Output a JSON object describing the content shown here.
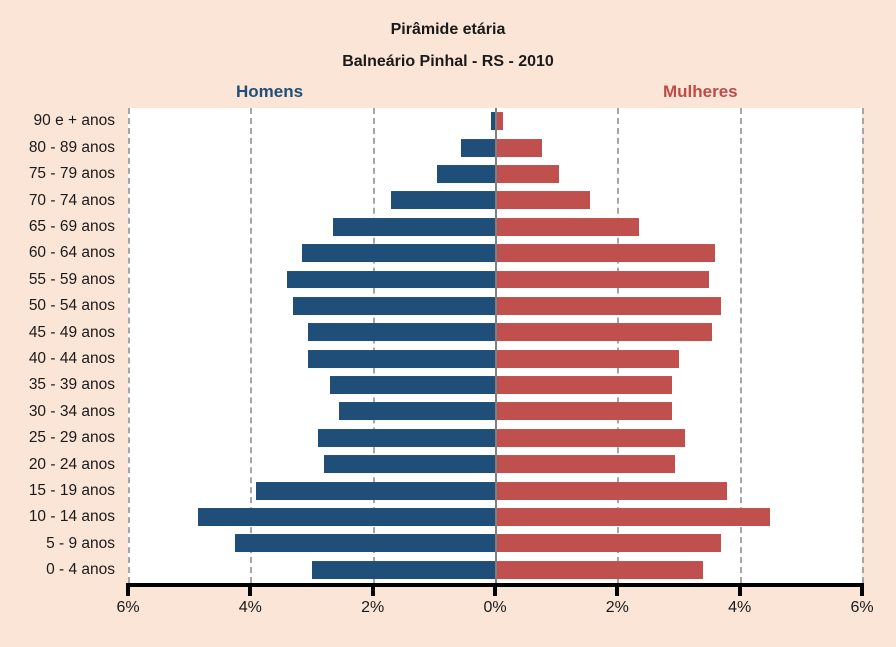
{
  "title": "Pirâmide etária",
  "subtitle": "Balneário Pinhal - RS - 2010",
  "legend": {
    "men_label": "Homens",
    "women_label": "Mulheres"
  },
  "colors": {
    "men_bar": "#1F4E79",
    "women_bar": "#C0504D",
    "men_label_text": "#1F4E79",
    "women_label_text": "#BE4B47",
    "background": "#FBE5D6",
    "plot_background": "#FFFFFF",
    "gridline": "#A6A6A6",
    "center_line": "#7F7F7F",
    "axis": "#000000",
    "text": "#1A1A1A"
  },
  "chart_data": {
    "type": "bar",
    "variant": "population-pyramid",
    "title": "Pirâmide etária",
    "subtitle": "Balneário Pinhal - RS - 2010",
    "unit": "% of population",
    "categories_top_to_bottom": [
      "90 e + anos",
      "80 - 89 anos",
      "75 - 79 anos",
      "70 - 74 anos",
      "65 - 69 anos",
      "60 - 64 anos",
      "55 - 59 anos",
      "50 - 54 anos",
      "45 - 49 anos",
      "40 - 44 anos",
      "35 - 39 anos",
      "30 - 34 anos",
      "25 - 29 anos",
      "20 - 24 anos",
      "15 - 19 anos",
      "10 - 14 anos",
      "5 - 9 anos",
      "0 - 4 anos"
    ],
    "series": [
      {
        "name": "Homens",
        "side": "left",
        "values": [
          0.07,
          0.55,
          0.95,
          1.7,
          2.65,
          3.15,
          3.4,
          3.3,
          3.05,
          3.05,
          2.7,
          2.55,
          2.9,
          2.8,
          3.9,
          4.85,
          4.25,
          3.0
        ]
      },
      {
        "name": "Mulheres",
        "side": "right",
        "values": [
          0.13,
          0.77,
          1.05,
          1.55,
          2.35,
          3.6,
          3.5,
          3.7,
          3.55,
          3.0,
          2.9,
          2.9,
          3.1,
          2.95,
          3.8,
          4.5,
          3.7,
          3.4
        ]
      }
    ],
    "x_axis": {
      "tick_labels": [
        "6%",
        "4%",
        "2%",
        "0%",
        "2%",
        "4%",
        "6%"
      ],
      "min": -6,
      "max": 6,
      "step": 2,
      "center_label": "0%"
    },
    "grid": "vertical-dashed, solid center line",
    "legend_position": "above plot, Homens left / Mulheres right"
  }
}
